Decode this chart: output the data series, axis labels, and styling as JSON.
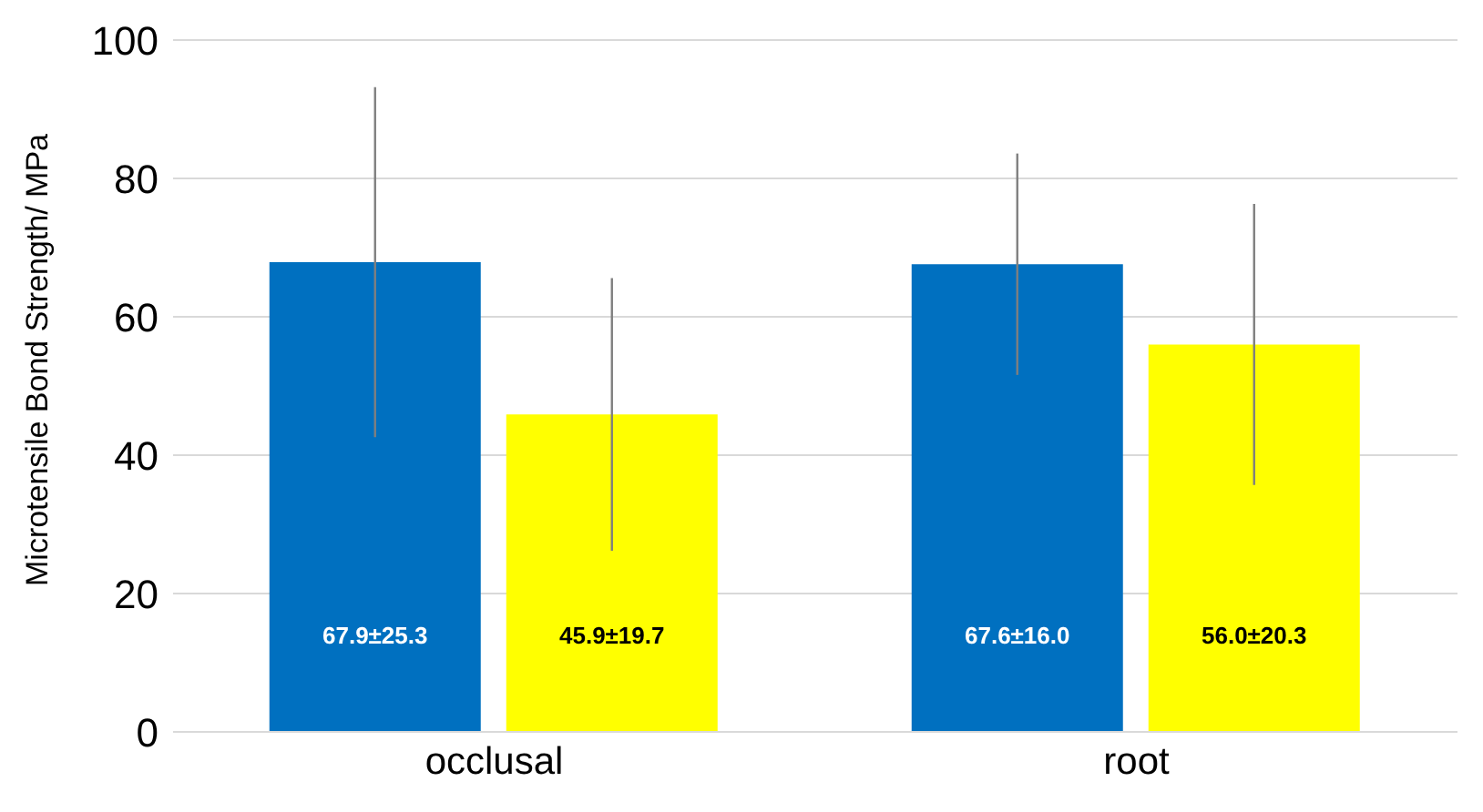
{
  "chart_data": {
    "type": "bar",
    "ylabel": "Microtensile Bond Strength/ MPa",
    "categories": [
      "occlusal",
      "root"
    ],
    "series": [
      {
        "color": "#0070c0",
        "values": [
          67.9,
          67.6
        ],
        "errors": [
          25.3,
          16.0
        ],
        "value_labels": [
          "67.9±25.3",
          "67.6±16.0"
        ]
      },
      {
        "color": "#ffff00",
        "values": [
          45.9,
          56.0
        ],
        "errors": [
          19.7,
          20.3
        ],
        "value_labels": [
          "45.9±19.7",
          "56.0±20.3"
        ]
      }
    ],
    "ylim": [
      0,
      100
    ],
    "yticks": [
      0,
      20,
      40,
      60,
      80,
      100
    ],
    "grid": "y",
    "legend": false
  }
}
